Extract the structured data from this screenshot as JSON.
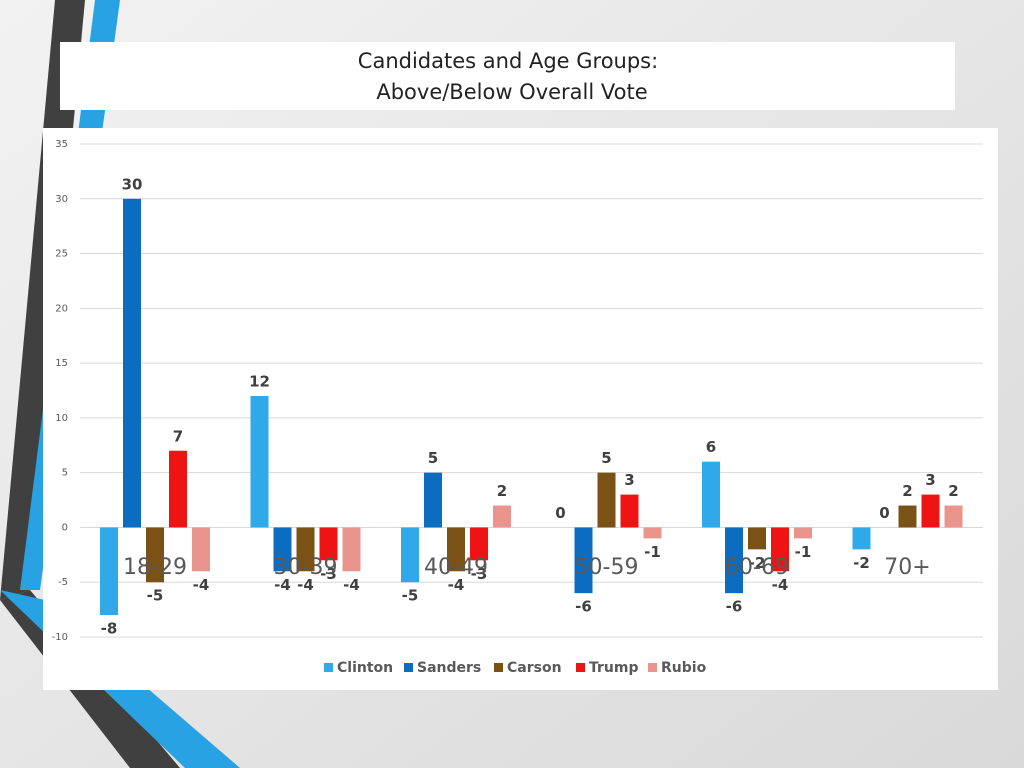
{
  "chart_data": {
    "type": "bar",
    "title": "Candidates and Age Groups:",
    "subtitle": "Above/Below Overall Vote",
    "categories": [
      "18-29",
      "30-39",
      "40-49",
      "50-59",
      "60-69",
      "70+"
    ],
    "series": [
      {
        "name": "Clinton",
        "color": "#2fa9e8",
        "values": [
          -8,
          12,
          -5,
          0,
          6,
          -2
        ]
      },
      {
        "name": "Sanders",
        "color": "#0b6cc0",
        "values": [
          30,
          -4,
          5,
          -6,
          -6,
          0
        ]
      },
      {
        "name": "Carson",
        "color": "#7b5216",
        "values": [
          -5,
          -4,
          -4,
          5,
          -2,
          2
        ]
      },
      {
        "name": "Trump",
        "color": "#ee1414",
        "values": [
          7,
          -3,
          -3,
          3,
          -4,
          3
        ]
      },
      {
        "name": "Rubio",
        "color": "#e9958e",
        "values": [
          -4,
          -4,
          2,
          -1,
          -1,
          2
        ]
      }
    ],
    "ylim": [
      -10,
      35
    ],
    "yticks": [
      -10,
      -5,
      0,
      5,
      10,
      15,
      20,
      25,
      30,
      35
    ],
    "grid": true,
    "legend": "bottom"
  }
}
